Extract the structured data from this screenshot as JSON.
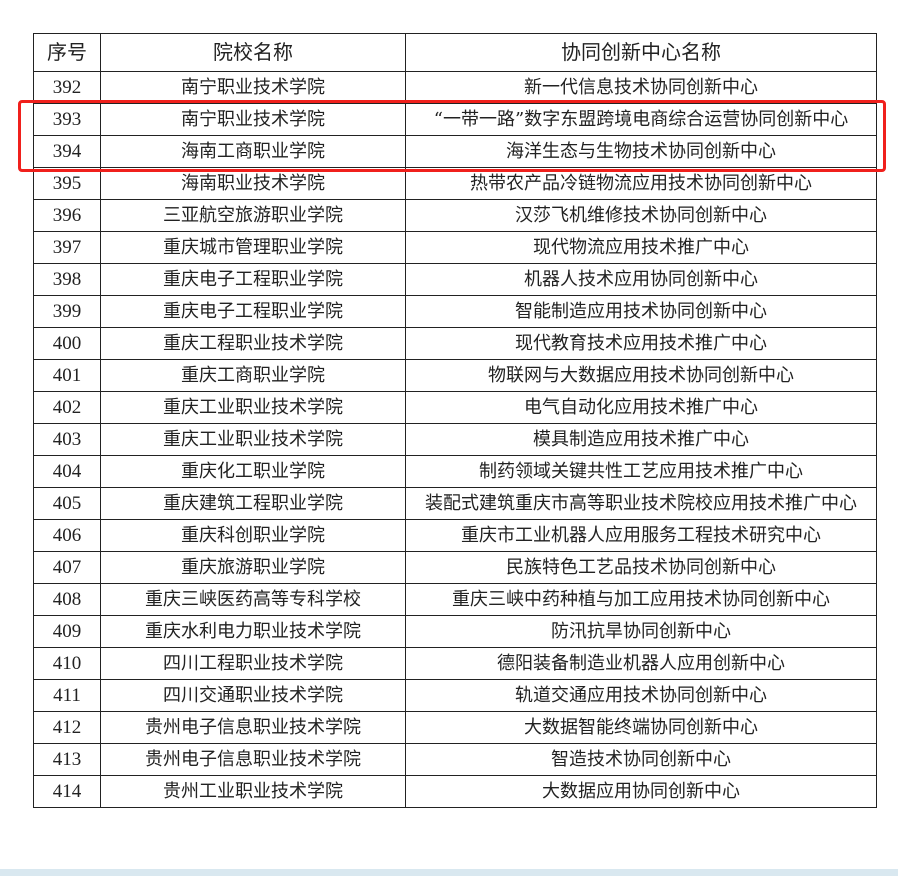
{
  "table": {
    "headers": [
      "序号",
      "院校名称",
      "协同创新中心名称"
    ],
    "rows": [
      {
        "seq": "392",
        "school": "南宁职业技术学院",
        "center": "新一代信息技术协同创新中心"
      },
      {
        "seq": "393",
        "school": "南宁职业技术学院",
        "center": "“一带一路”数字东盟跨境电商综合运营协同创新中心",
        "highlighted": true
      },
      {
        "seq": "394",
        "school": "海南工商职业学院",
        "center": "海洋生态与生物技术协同创新中心"
      },
      {
        "seq": "395",
        "school": "海南职业技术学院",
        "center": "热带农产品冷链物流应用技术协同创新中心"
      },
      {
        "seq": "396",
        "school": "三亚航空旅游职业学院",
        "center": "汉莎飞机维修技术协同创新中心"
      },
      {
        "seq": "397",
        "school": "重庆城市管理职业学院",
        "center": "现代物流应用技术推广中心"
      },
      {
        "seq": "398",
        "school": "重庆电子工程职业学院",
        "center": "机器人技术应用协同创新中心"
      },
      {
        "seq": "399",
        "school": "重庆电子工程职业学院",
        "center": "智能制造应用技术协同创新中心"
      },
      {
        "seq": "400",
        "school": "重庆工程职业技术学院",
        "center": "现代教育技术应用技术推广中心"
      },
      {
        "seq": "401",
        "school": "重庆工商职业学院",
        "center": "物联网与大数据应用技术协同创新中心"
      },
      {
        "seq": "402",
        "school": "重庆工业职业技术学院",
        "center": "电气自动化应用技术推广中心"
      },
      {
        "seq": "403",
        "school": "重庆工业职业技术学院",
        "center": "模具制造应用技术推广中心"
      },
      {
        "seq": "404",
        "school": "重庆化工职业学院",
        "center": "制药领域关键共性工艺应用技术推广中心"
      },
      {
        "seq": "405",
        "school": "重庆建筑工程职业学院",
        "center": "装配式建筑重庆市高等职业技术院校应用技术推广中心"
      },
      {
        "seq": "406",
        "school": "重庆科创职业学院",
        "center": "重庆市工业机器人应用服务工程技术研究中心"
      },
      {
        "seq": "407",
        "school": "重庆旅游职业学院",
        "center": "民族特色工艺品技术协同创新中心"
      },
      {
        "seq": "408",
        "school": "重庆三峡医药高等专科学校",
        "center": "重庆三峡中药种植与加工应用技术协同创新中心"
      },
      {
        "seq": "409",
        "school": "重庆水利电力职业技术学院",
        "center": "防汛抗旱协同创新中心"
      },
      {
        "seq": "410",
        "school": "四川工程职业技术学院",
        "center": "德阳装备制造业机器人应用创新中心"
      },
      {
        "seq": "411",
        "school": "四川交通职业技术学院",
        "center": "轨道交通应用技术协同创新中心"
      },
      {
        "seq": "412",
        "school": "贵州电子信息职业技术学院",
        "center": "大数据智能终端协同创新中心"
      },
      {
        "seq": "413",
        "school": "贵州电子信息职业技术学院",
        "center": "智造技术协同创新中心"
      },
      {
        "seq": "414",
        "school": "贵州工业职业技术学院",
        "center": "大数据应用协同创新中心"
      }
    ]
  },
  "colors": {
    "highlight": "#f0201c"
  }
}
